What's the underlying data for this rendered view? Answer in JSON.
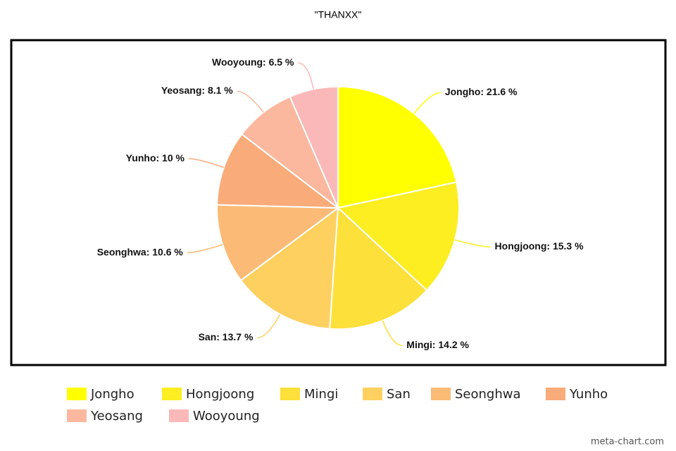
{
  "chart_data": {
    "type": "pie",
    "title": "\"THANXX\"",
    "categories": [
      "Jongho",
      "Hongjoong",
      "Mingi",
      "San",
      "Seonghwa",
      "Yunho",
      "Yeosang",
      "Wooyoung"
    ],
    "values": [
      21.6,
      15.3,
      14.2,
      13.7,
      10.6,
      10,
      8.1,
      6.5
    ],
    "value_labels": [
      "Jongho: 21.6 %",
      "Hongjoong: 15.3 %",
      "Mingi: 14.2 %",
      "San: 13.7 %",
      "Seonghwa: 10.6 %",
      "Yunho: 10 %",
      "Yeosang: 8.1 %",
      "Wooyoung: 6.5 %"
    ],
    "colors": [
      "#ffff00",
      "#fcee21",
      "#fde03a",
      "#fdd060",
      "#fbbb77",
      "#f9ab7a",
      "#fbb89e",
      "#fbb8b8"
    ],
    "legend": "bottom",
    "watermark": "meta-chart.com"
  }
}
